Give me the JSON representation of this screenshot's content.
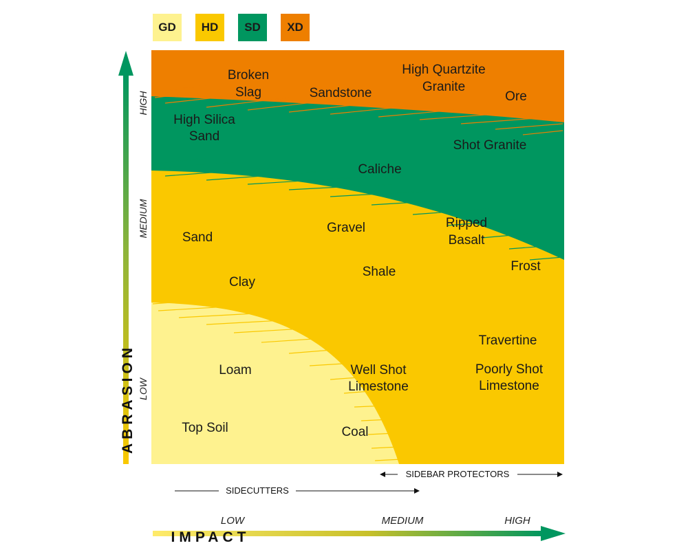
{
  "legend": [
    {
      "label": "GD",
      "color": "#FEF28F"
    },
    {
      "label": "HD",
      "color": "#FAC800"
    },
    {
      "label": "SD",
      "color": "#00965F"
    },
    {
      "label": "XD",
      "color": "#EE7F00"
    }
  ],
  "y_axis": {
    "title": "ABRASION",
    "levels": [
      "HIGH",
      "MEDIUM",
      "LOW"
    ]
  },
  "x_axis": {
    "title": "IMPACT",
    "levels": [
      "LOW",
      "MEDIUM",
      "HIGH"
    ]
  },
  "ranges": {
    "sidebar_protectors": "SIDEBAR PROTECTORS",
    "sidecutters": "SIDECUTTERS"
  },
  "materials": {
    "broken_slag": [
      "Broken",
      "Slag"
    ],
    "sandstone": "Sandstone",
    "high_quartzite_granite": [
      "High Quartzite",
      "Granite"
    ],
    "ore": "Ore",
    "high_silica_sand": [
      "High Silica",
      "Sand"
    ],
    "shot_granite": "Shot Granite",
    "caliche": "Caliche",
    "sand": "Sand",
    "gravel": "Gravel",
    "ripped_basalt": [
      "Ripped",
      "Basalt"
    ],
    "frost": "Frost",
    "clay": "Clay",
    "shale": "Shale",
    "travertine": "Travertine",
    "loam": "Loam",
    "well_shot_limestone": [
      "Well Shot",
      "Limestone"
    ],
    "poorly_shot_limestone": [
      "Poorly Shot",
      "Limestone"
    ],
    "top_soil": "Top Soil",
    "coal": "Coal"
  }
}
